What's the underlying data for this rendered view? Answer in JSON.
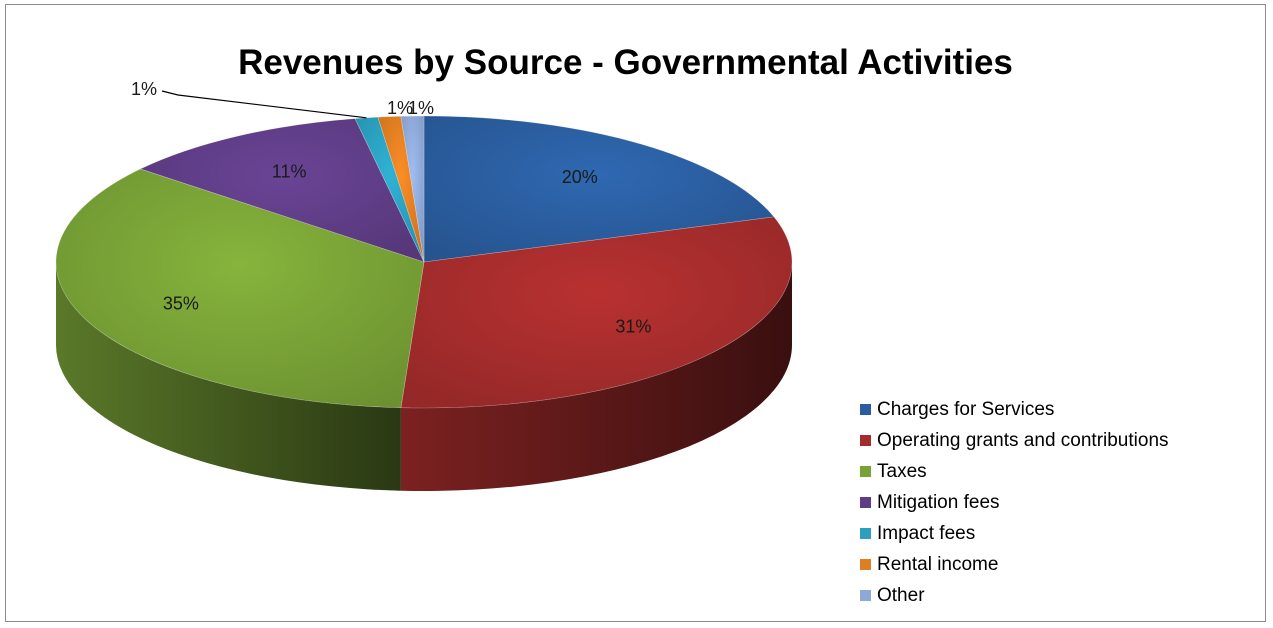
{
  "chart_data": {
    "type": "pie",
    "title": "Revenues by Source - Governmental Activities",
    "legend_position": "right",
    "slices": [
      {
        "label": "Charges for Services",
        "value": 20,
        "display": "20%",
        "color": "#2a5d9f"
      },
      {
        "label": "Operating grants and contributions",
        "value": 31,
        "display": "31%",
        "color": "#a52c2c"
      },
      {
        "label": "Taxes",
        "value": 35,
        "display": "35%",
        "color": "#78a136"
      },
      {
        "label": "Mitigation fees",
        "value": 11,
        "display": "11%",
        "color": "#5f3d86"
      },
      {
        "label": "Impact fees",
        "value": 1,
        "display": "1%",
        "color": "#2b9fbe"
      },
      {
        "label": "Rental income",
        "value": 1,
        "display": "1%",
        "color": "#e07e22"
      },
      {
        "label": "Other",
        "value": 1,
        "display": "1%",
        "color": "#8ea9d8"
      }
    ]
  }
}
